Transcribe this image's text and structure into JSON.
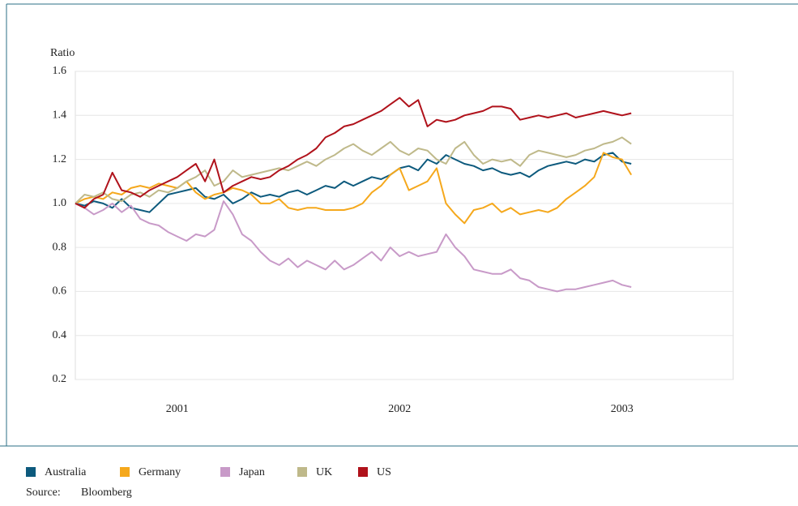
{
  "chart_data": {
    "type": "line",
    "y_label": "Ratio",
    "categories": [
      null,
      null,
      null,
      null,
      null,
      null,
      null,
      null,
      null,
      null,
      null,
      "2001",
      null,
      null,
      null,
      null,
      null,
      null,
      null,
      null,
      null,
      null,
      null,
      null,
      null,
      null,
      null,
      null,
      null,
      null,
      null,
      null,
      null,
      null,
      null,
      "2002",
      null,
      null,
      null,
      null,
      null,
      null,
      null,
      null,
      null,
      null,
      null,
      null,
      null,
      null,
      null,
      null,
      null,
      null,
      null,
      null,
      null,
      null,
      null,
      "2003",
      null,
      null,
      null,
      null,
      null,
      null,
      null,
      null,
      null,
      null,
      null,
      null
    ],
    "ylim": [
      0.2,
      1.6
    ],
    "yticks": [
      0.2,
      0.4,
      0.6,
      0.8,
      {
        "value": 1,
        "label": "1.0"
      },
      1.2,
      1.4,
      1.6
    ],
    "grid": true,
    "legend": "bottom-left",
    "series": [
      {
        "name": "Australia",
        "color": "#0d5a7d",
        "values": [
          1.0,
          0.99,
          1.01,
          1.0,
          0.98,
          1.02,
          0.98,
          0.97,
          0.96,
          1.0,
          1.04,
          1.05,
          1.06,
          1.07,
          1.03,
          1.02,
          1.04,
          1.0,
          1.02,
          1.05,
          1.03,
          1.04,
          1.03,
          1.05,
          1.06,
          1.04,
          1.06,
          1.08,
          1.07,
          1.1,
          1.08,
          1.1,
          1.12,
          1.11,
          1.13,
          1.16,
          1.17,
          1.15,
          1.2,
          1.18,
          1.22,
          1.2,
          1.18,
          1.17,
          1.15,
          1.16,
          1.14,
          1.13,
          1.14,
          1.12,
          1.15,
          1.17,
          1.18,
          1.19,
          1.18,
          1.2,
          1.19,
          1.22,
          1.23,
          1.19,
          1.18,
          null,
          null,
          null,
          null,
          null,
          null,
          null,
          null,
          null,
          null,
          null
        ]
      },
      {
        "name": "Germany",
        "color": "#f5a81c",
        "values": [
          1.0,
          1.02,
          1.03,
          1.02,
          1.05,
          1.04,
          1.07,
          1.08,
          1.07,
          1.09,
          1.08,
          1.07,
          1.1,
          1.05,
          1.02,
          1.04,
          1.05,
          1.07,
          1.06,
          1.04,
          1.0,
          1.0,
          1.02,
          0.98,
          0.97,
          0.98,
          0.98,
          0.97,
          0.97,
          0.97,
          0.98,
          1.0,
          1.05,
          1.08,
          1.13,
          1.16,
          1.06,
          1.08,
          1.1,
          1.16,
          1.0,
          0.95,
          0.91,
          0.97,
          0.98,
          1.0,
          0.96,
          0.98,
          0.95,
          0.96,
          0.97,
          0.96,
          0.98,
          1.02,
          1.05,
          1.08,
          1.12,
          1.23,
          1.21,
          1.2,
          1.13,
          null,
          null,
          null,
          null,
          null,
          null,
          null,
          null,
          null,
          null,
          null
        ]
      },
      {
        "name": "Japan",
        "color": "#c89ac8",
        "values": [
          1.0,
          0.98,
          0.95,
          0.97,
          1.0,
          0.96,
          0.99,
          0.93,
          0.91,
          0.9,
          0.87,
          0.85,
          0.83,
          0.86,
          0.85,
          0.88,
          1.01,
          0.95,
          0.86,
          0.83,
          0.78,
          0.74,
          0.72,
          0.75,
          0.71,
          0.74,
          0.72,
          0.7,
          0.74,
          0.7,
          0.72,
          0.75,
          0.78,
          0.74,
          0.8,
          0.76,
          0.78,
          0.76,
          0.77,
          0.78,
          0.86,
          0.8,
          0.76,
          0.7,
          0.69,
          0.68,
          0.68,
          0.7,
          0.66,
          0.65,
          0.62,
          0.61,
          0.6,
          0.61,
          0.61,
          0.62,
          0.63,
          0.64,
          0.65,
          0.63,
          0.62,
          null,
          null,
          null,
          null,
          null,
          null,
          null,
          null,
          null,
          null,
          null
        ]
      },
      {
        "name": "UK",
        "color": "#bfb98a",
        "values": [
          1.0,
          1.04,
          1.03,
          1.05,
          1.02,
          1.01,
          1.04,
          1.05,
          1.03,
          1.06,
          1.05,
          1.07,
          1.1,
          1.12,
          1.15,
          1.08,
          1.1,
          1.15,
          1.12,
          1.13,
          1.14,
          1.15,
          1.16,
          1.15,
          1.17,
          1.19,
          1.17,
          1.2,
          1.22,
          1.25,
          1.27,
          1.24,
          1.22,
          1.25,
          1.28,
          1.24,
          1.22,
          1.25,
          1.24,
          1.2,
          1.18,
          1.25,
          1.28,
          1.22,
          1.18,
          1.2,
          1.19,
          1.2,
          1.17,
          1.22,
          1.24,
          1.23,
          1.22,
          1.21,
          1.22,
          1.24,
          1.25,
          1.27,
          1.28,
          1.3,
          1.27,
          null,
          null,
          null,
          null,
          null,
          null,
          null,
          null,
          null,
          null,
          null
        ]
      },
      {
        "name": "US",
        "color": "#b0121b",
        "values": [
          1.0,
          0.98,
          1.02,
          1.04,
          1.14,
          1.06,
          1.05,
          1.03,
          1.06,
          1.08,
          1.1,
          1.12,
          1.15,
          1.18,
          1.1,
          1.2,
          1.05,
          1.08,
          1.1,
          1.12,
          1.11,
          1.12,
          1.15,
          1.17,
          1.2,
          1.22,
          1.25,
          1.3,
          1.32,
          1.35,
          1.36,
          1.38,
          1.4,
          1.42,
          1.45,
          1.48,
          1.44,
          1.47,
          1.35,
          1.38,
          1.37,
          1.38,
          1.4,
          1.41,
          1.42,
          1.44,
          1.44,
          1.43,
          1.38,
          1.39,
          1.4,
          1.39,
          1.4,
          1.41,
          1.39,
          1.4,
          1.41,
          1.42,
          1.41,
          1.4,
          1.41,
          null,
          null,
          null,
          null,
          null,
          null,
          null,
          null,
          null,
          null,
          null
        ]
      }
    ],
    "source_label": "Source:",
    "source": "Bloomberg"
  }
}
